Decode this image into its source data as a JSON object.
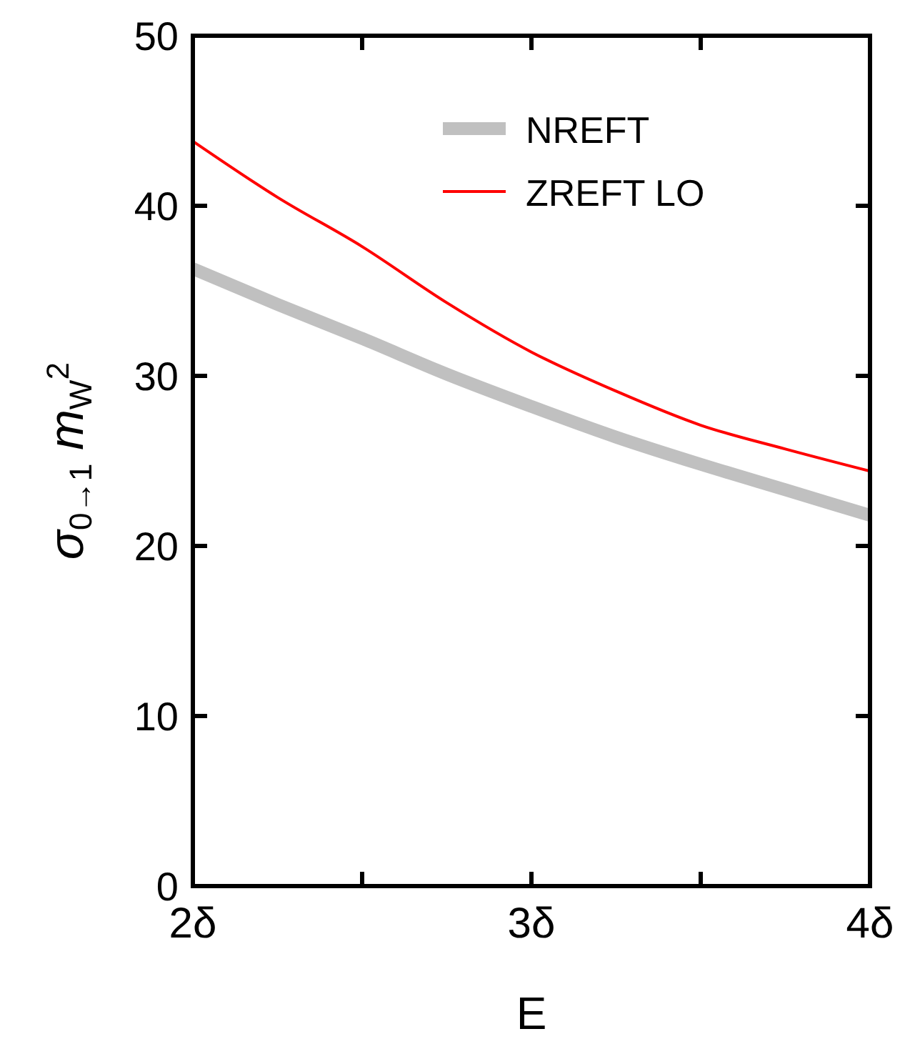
{
  "chart_data": {
    "type": "line",
    "xlabel": "E",
    "ylabel": "σ$_{0→1}$ m$_{W}$$^{2}$",
    "x": [
      2,
      2.25,
      2.5,
      2.75,
      3,
      3.25,
      3.5,
      3.75,
      4
    ],
    "series": [
      {
        "name": "NREFT",
        "color": "#c0c0c0",
        "values": [
          36.3,
          34.2,
          32.2,
          30.1,
          28.2,
          26.4,
          24.8,
          23.3,
          21.8
        ]
      },
      {
        "name": "ZREFT LO",
        "color": "#ff0000",
        "values": [
          43.8,
          40.5,
          37.6,
          34.3,
          31.4,
          29.1,
          27.1,
          25.7,
          24.4
        ]
      }
    ],
    "xlim": [
      2,
      4
    ],
    "xticks": [
      {
        "value": 2,
        "label": "2δ"
      },
      {
        "value": 2.5,
        "label": null
      },
      {
        "value": 3,
        "label": "3δ"
      },
      {
        "value": 3.5,
        "label": null
      },
      {
        "value": 4,
        "label": "4δ"
      }
    ],
    "ylim": [
      0,
      50
    ],
    "yticks": [
      0,
      10,
      20,
      30,
      40,
      50
    ],
    "grid": false,
    "legend": "top right",
    "line_style": "solid"
  }
}
